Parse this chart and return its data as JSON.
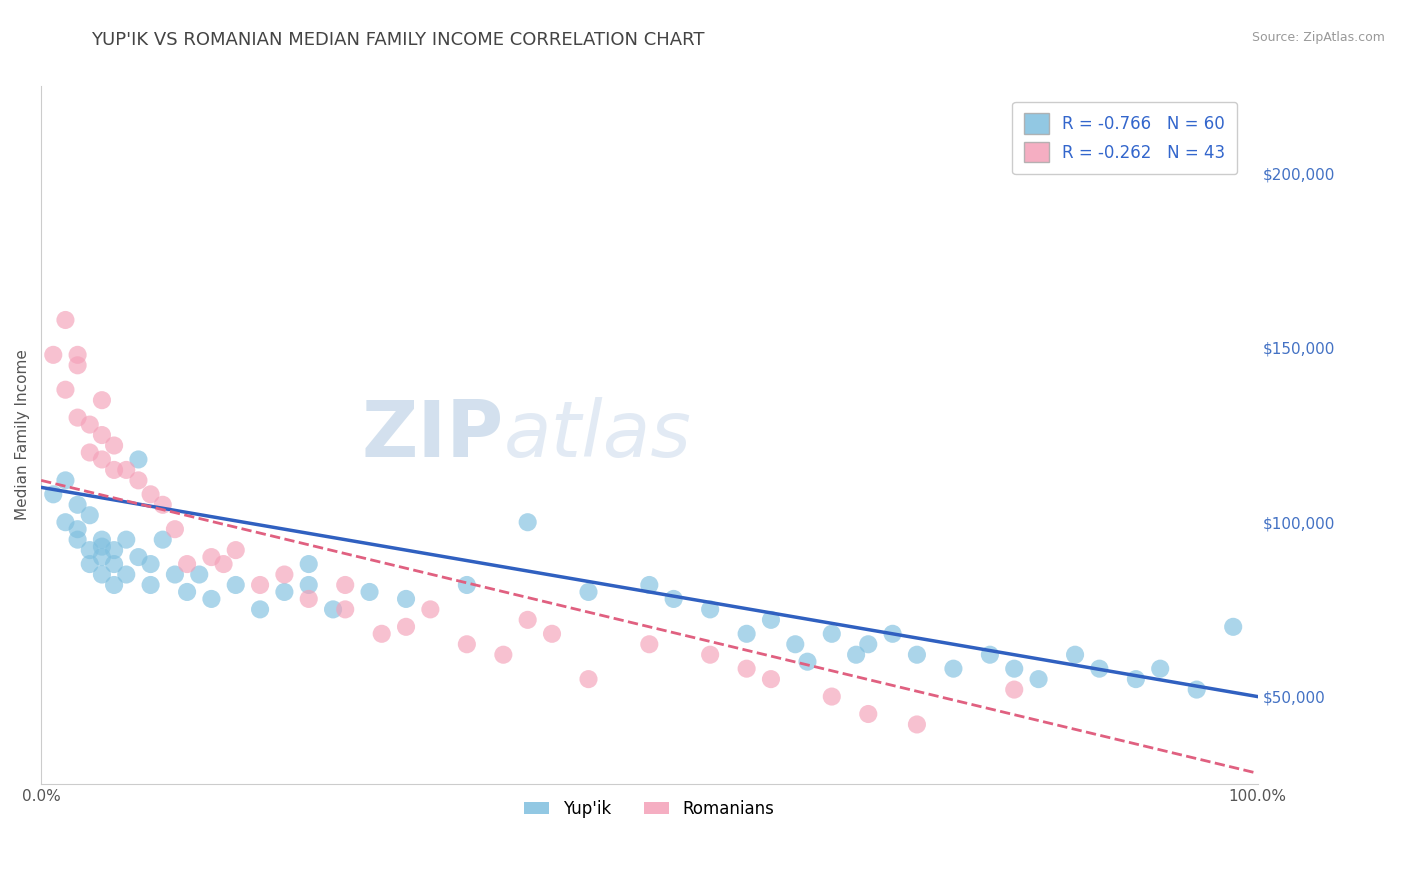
{
  "title": "YUP'IK VS ROMANIAN MEDIAN FAMILY INCOME CORRELATION CHART",
  "source_text": "Source: ZipAtlas.com",
  "ylabel": "Median Family Income",
  "xlim": [
    0,
    1
  ],
  "ylim": [
    25000,
    225000
  ],
  "xtick_labels": [
    "0.0%",
    "100.0%"
  ],
  "ytick_values": [
    50000,
    100000,
    150000,
    200000
  ],
  "ytick_labels": [
    "$50,000",
    "$100,000",
    "$150,000",
    "$200,000"
  ],
  "yupik_color": "#7fbfdf",
  "romanian_color": "#f4a0b8",
  "legend_R_label1": "R = -0.766   N = 60",
  "legend_R_label2": "R = -0.262   N = 43",
  "watermark_zip": "ZIP",
  "watermark_atlas": "atlas",
  "background_color": "#ffffff",
  "grid_color": "#cccccc",
  "title_color": "#444444",
  "blue_line_color": "#3060c0",
  "pink_line_color": "#e06080",
  "yupik_x": [
    0.01,
    0.02,
    0.02,
    0.03,
    0.03,
    0.03,
    0.04,
    0.04,
    0.04,
    0.05,
    0.05,
    0.05,
    0.05,
    0.06,
    0.06,
    0.06,
    0.07,
    0.07,
    0.08,
    0.08,
    0.09,
    0.09,
    0.1,
    0.11,
    0.12,
    0.13,
    0.14,
    0.16,
    0.18,
    0.2,
    0.22,
    0.22,
    0.24,
    0.27,
    0.3,
    0.35,
    0.4,
    0.45,
    0.5,
    0.52,
    0.55,
    0.58,
    0.6,
    0.62,
    0.63,
    0.65,
    0.67,
    0.68,
    0.7,
    0.72,
    0.75,
    0.78,
    0.8,
    0.82,
    0.85,
    0.87,
    0.9,
    0.92,
    0.95,
    0.98
  ],
  "yupik_y": [
    108000,
    100000,
    112000,
    98000,
    105000,
    95000,
    92000,
    88000,
    102000,
    95000,
    90000,
    85000,
    93000,
    88000,
    82000,
    92000,
    95000,
    85000,
    118000,
    90000,
    82000,
    88000,
    95000,
    85000,
    80000,
    85000,
    78000,
    82000,
    75000,
    80000,
    88000,
    82000,
    75000,
    80000,
    78000,
    82000,
    100000,
    80000,
    82000,
    78000,
    75000,
    68000,
    72000,
    65000,
    60000,
    68000,
    62000,
    65000,
    68000,
    62000,
    58000,
    62000,
    58000,
    55000,
    62000,
    58000,
    55000,
    58000,
    52000,
    70000
  ],
  "romanian_x": [
    0.01,
    0.02,
    0.02,
    0.03,
    0.03,
    0.03,
    0.04,
    0.04,
    0.05,
    0.05,
    0.05,
    0.06,
    0.06,
    0.07,
    0.08,
    0.09,
    0.1,
    0.11,
    0.12,
    0.14,
    0.15,
    0.16,
    0.18,
    0.2,
    0.22,
    0.25,
    0.25,
    0.28,
    0.3,
    0.32,
    0.35,
    0.38,
    0.4,
    0.42,
    0.45,
    0.5,
    0.55,
    0.58,
    0.6,
    0.65,
    0.68,
    0.72,
    0.8
  ],
  "romanian_y": [
    148000,
    158000,
    138000,
    148000,
    130000,
    145000,
    128000,
    120000,
    135000,
    125000,
    118000,
    115000,
    122000,
    115000,
    112000,
    108000,
    105000,
    98000,
    88000,
    90000,
    88000,
    92000,
    82000,
    85000,
    78000,
    82000,
    75000,
    68000,
    70000,
    75000,
    65000,
    62000,
    72000,
    68000,
    55000,
    65000,
    62000,
    58000,
    55000,
    50000,
    45000,
    42000,
    52000
  ],
  "title_fontsize": 13,
  "axis_label_fontsize": 11,
  "tick_fontsize": 11,
  "source_fontsize": 9,
  "legend_fontsize": 12,
  "scatter_size": 170,
  "scatter_alpha": 0.65
}
